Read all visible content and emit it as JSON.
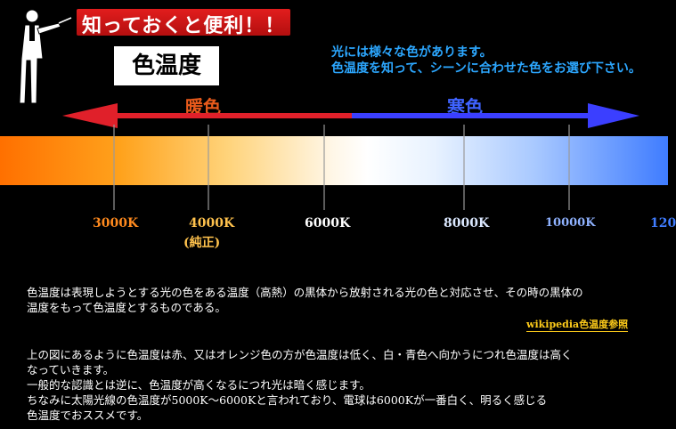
{
  "header": {
    "title": "知っておくと便利！！",
    "concept": "色温度",
    "intro_lines": [
      "光には様々な色があります。",
      "色温度を知って、シーンに合わせた色をお選び下さい。"
    ]
  },
  "scale": {
    "warm_label": "暖色",
    "cool_label": "寒色",
    "colors": {
      "warm": "#e0202a",
      "cool": "#3b3fff"
    },
    "ticks": [
      {
        "label": "3000K",
        "sub": ""
      },
      {
        "label": "4000K",
        "sub": "(純正)"
      },
      {
        "label": "6000K",
        "sub": ""
      },
      {
        "label": "8000K",
        "sub": ""
      },
      {
        "label": "10000K",
        "sub": ""
      },
      {
        "label": "120",
        "sub": ""
      }
    ]
  },
  "body": {
    "definition_lines": [
      "色温度は表現しようとする光の色をある温度（高熱）の黒体から放射される光の色と対応させ、その時の黒体の",
      "温度をもって色温度とするものである。"
    ],
    "reference_link": "wikipedia色温度参照",
    "explanation_lines": [
      "上の図にあるように色温度は赤、又はオレンジ色の方が色温度は低く、白・青色へ向かうにつれ色温度は高く",
      "なっていきます。",
      "一般的な認識とは逆に、色温度が高くなるにつれ光は暗く感じます。",
      "ちなみに太陽光線の色温度が5000K～6000Kと言われており、電球は6000Kが一番白く、明るく感じる",
      "色温度でおススメです。"
    ]
  }
}
